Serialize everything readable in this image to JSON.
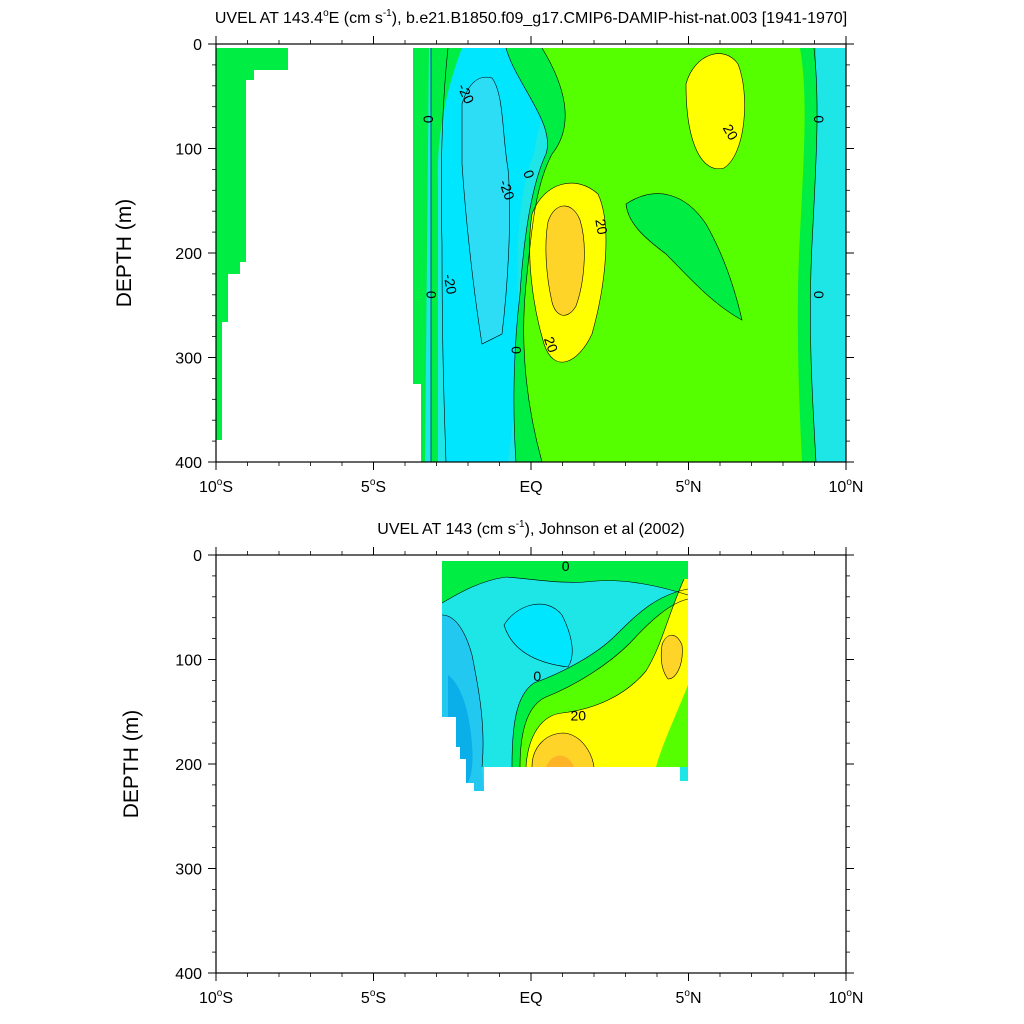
{
  "chart_data": [
    {
      "type": "contour",
      "title": "UVEL AT 143.4°E (cm s-1), b.e21.B1850.f09_g17.CMIP6-DAMIP-hist-nat.003 [1941-1970]",
      "title_parts": {
        "pre": "UVEL AT 143.4",
        "deg": "o",
        "mid": "E (cm s",
        "exp": "-1",
        "post": "), b.e21.B1850.f09_g17.CMIP6-DAMIP-hist-nat.003 [1941-1970]"
      },
      "ylabel": "DEPTH (m)",
      "xlim": [
        -10,
        10
      ],
      "ylim": [
        400,
        0
      ],
      "x_ticks": [
        {
          "value": -10,
          "text": "10",
          "deg": "o",
          "suffix": "S"
        },
        {
          "value": -5,
          "text": "5",
          "deg": "o",
          "suffix": "S"
        },
        {
          "value": 0,
          "text": "EQ",
          "deg": "",
          "suffix": ""
        },
        {
          "value": 5,
          "text": "5",
          "deg": "o",
          "suffix": "N"
        },
        {
          "value": 10,
          "text": "10",
          "deg": "o",
          "suffix": "N"
        }
      ],
      "y_ticks": [
        0,
        100,
        200,
        300,
        400
      ],
      "contour_interval": 10,
      "fill_colors": {
        "neg30": "#00c8f0",
        "neg20": "#00e6ff",
        "neg10": "#1ee6e6",
        "zero": "#00ee44",
        "pos10": "#55ff00",
        "pos20": "#ffff00",
        "pos30": "#ffd428"
      },
      "contour_labels": [
        {
          "x": -3.3,
          "y": 72,
          "text": "0",
          "rot": 90
        },
        {
          "x": -2.1,
          "y": 48,
          "text": "-20",
          "rot": 65
        },
        {
          "x": -0.8,
          "y": 140,
          "text": "-20",
          "rot": 70
        },
        {
          "x": -0.1,
          "y": 125,
          "text": "0",
          "rot": 70
        },
        {
          "x": 2.2,
          "y": 175,
          "text": "20",
          "rot": 80
        },
        {
          "x": -2.6,
          "y": 230,
          "text": "-20",
          "rot": 80
        },
        {
          "x": -3.2,
          "y": 240,
          "text": "0",
          "rot": 90
        },
        {
          "x": -0.5,
          "y": 293,
          "text": "0",
          "rot": 90
        },
        {
          "x": 0.6,
          "y": 288,
          "text": "20",
          "rot": 70
        },
        {
          "x": 6.3,
          "y": 85,
          "text": "20",
          "rot": 60
        },
        {
          "x": 9.1,
          "y": 72,
          "text": "0",
          "rot": 90
        },
        {
          "x": 9.1,
          "y": 240,
          "text": "0",
          "rot": 90
        }
      ]
    },
    {
      "type": "contour",
      "title": "UVEL AT 143 (cm s-1), Johnson et al (2002)",
      "title_parts": {
        "pre": "UVEL AT 143 (cm s",
        "deg": "",
        "mid": "",
        "exp": "-1",
        "post": "), Johnson et al (2002)"
      },
      "ylabel": "DEPTH (m)",
      "xlim": [
        -10,
        10
      ],
      "ylim": [
        400,
        0
      ],
      "x_ticks": [
        {
          "value": -10,
          "text": "10",
          "deg": "o",
          "suffix": "S"
        },
        {
          "value": -5,
          "text": "5",
          "deg": "o",
          "suffix": "S"
        },
        {
          "value": 0,
          "text": "EQ",
          "deg": "",
          "suffix": ""
        },
        {
          "value": 5,
          "text": "5",
          "deg": "o",
          "suffix": "N"
        },
        {
          "value": 10,
          "text": "10",
          "deg": "o",
          "suffix": "N"
        }
      ],
      "y_ticks": [
        0,
        100,
        200,
        300,
        400
      ],
      "data_extent": {
        "x": [
          -2.8,
          5
        ],
        "depth": [
          0,
          225
        ]
      },
      "contour_interval": 10,
      "contour_labels": [
        {
          "x": 1.1,
          "y": 12,
          "text": "0",
          "rot": 0
        },
        {
          "x": 0.2,
          "y": 117,
          "text": "0",
          "rot": 0
        },
        {
          "x": 1.5,
          "y": 155,
          "text": "20",
          "rot": 0
        }
      ]
    }
  ]
}
